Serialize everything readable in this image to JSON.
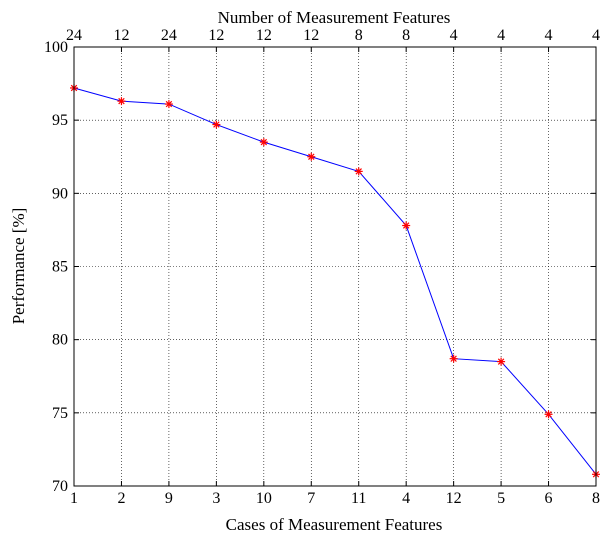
{
  "chart_data": {
    "type": "line",
    "title": "",
    "xlabel": "Cases of Measurement Features",
    "ylabel": "Performance [%]",
    "top_axis_label": "Number of Measurement Features",
    "categories": [
      "1",
      "2",
      "9",
      "3",
      "10",
      "7",
      "11",
      "4",
      "12",
      "5",
      "6",
      "8"
    ],
    "top_tick_labels": [
      "24",
      "12",
      "24",
      "12",
      "12",
      "12",
      "8",
      "8",
      "4",
      "4",
      "4",
      "4"
    ],
    "y_ticks": [
      "70",
      "75",
      "80",
      "85",
      "90",
      "95",
      "100"
    ],
    "ylim": [
      70,
      100
    ],
    "grid": true,
    "series": [
      {
        "values": [
          97.2,
          96.3,
          96.1,
          94.7,
          93.5,
          92.5,
          91.5,
          87.8,
          78.7,
          78.5,
          74.9,
          70.8
        ],
        "color": "#0000ff",
        "marker_color": "#ff0000",
        "marker": "asterisk"
      }
    ]
  }
}
